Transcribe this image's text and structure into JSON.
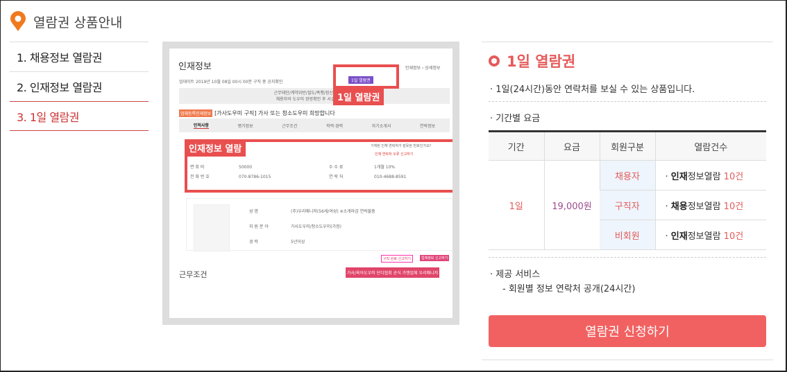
{
  "header": {
    "title": "열람권 상품안내",
    "icon": "map-pin-icon",
    "icon_color": "#f07a1e"
  },
  "nav": {
    "items": [
      {
        "label": "1. 채용정보 열람권",
        "active": false
      },
      {
        "label": "2. 인재정보 열람권",
        "active": false
      },
      {
        "label": "3. 1일 열람권",
        "active": true
      }
    ]
  },
  "preview": {
    "page_title": "인재정보",
    "breadcrumb": "인재정보 › 상세정보",
    "updated": "업데이트 2019년 10월 08일 00시 00분 구직 중 공지확인",
    "badge": "1일 열람권",
    "notice_lines": [
      "근무태만/계약위반/절도/폭행/정신질환 등의 사",
      "채용자와 도우미 쌍방확인 후 사실일 경우 영"
    ],
    "tag": "업체등록인재정보",
    "headline": "[가사도우미 구직] 가사 또는 청소도우미 희망합니다",
    "tabs": [
      "인적사항",
      "평가정보",
      "근무조건",
      "학력·경력",
      "자기소개서",
      "연락정보"
    ],
    "callout_1": "1일 열람권",
    "callout_2": "인재정보 열람",
    "contact_question": "기재된 인재 연락처가 잘못된 번호인가요?",
    "report_link": "인재 연락처 오류 신고하기",
    "rows": [
      [
        "면 회 비",
        "50000",
        "수 수 료",
        "1개월 10%"
      ],
      [
        "전 화 번 호",
        "070-8786-1015",
        "연 락 처",
        "010-4688-8591"
      ]
    ],
    "profile": [
      [
        "성 명",
        "(주)우리매니저(56세/여성) ※소개마감 연락불충"
      ],
      [
        "지 원 분 야",
        "가사도우미/청소도우미(가정)"
      ],
      [
        "경 력",
        "5년이상"
      ]
    ],
    "btn_report1": "구직 완료 신고하기",
    "btn_report2": "업체정보 신고하기",
    "section": "근무조건",
    "banner": "가사/육아도우미 단디협회 공식 가맹업체 우리매니저"
  },
  "product": {
    "title": "1일 열람권",
    "desc": "· 1일(24시간)동안 연락처를 보실 수 있는 상품입니다.",
    "price_label": "· 기간별 요금",
    "table": {
      "headers": [
        "기간",
        "요금",
        "회원구분",
        "열람건수"
      ],
      "period": "1일",
      "price": "19,000원",
      "rows": [
        {
          "member": "채용자",
          "bold": "인재",
          "rest": "정보열람",
          "count": "10건"
        },
        {
          "member": "구직자",
          "bold": "채용",
          "rest": "정보열람",
          "count": "10건"
        },
        {
          "member": "비회원",
          "bold": "인재",
          "rest": "정보열람",
          "count": "10건"
        }
      ]
    },
    "service_label": "· 제공 서비스",
    "service_item": "- 회원별 정보 연락처 공개(24시간)",
    "apply_button": "열람권 신청하기",
    "accent": "#f26161"
  }
}
